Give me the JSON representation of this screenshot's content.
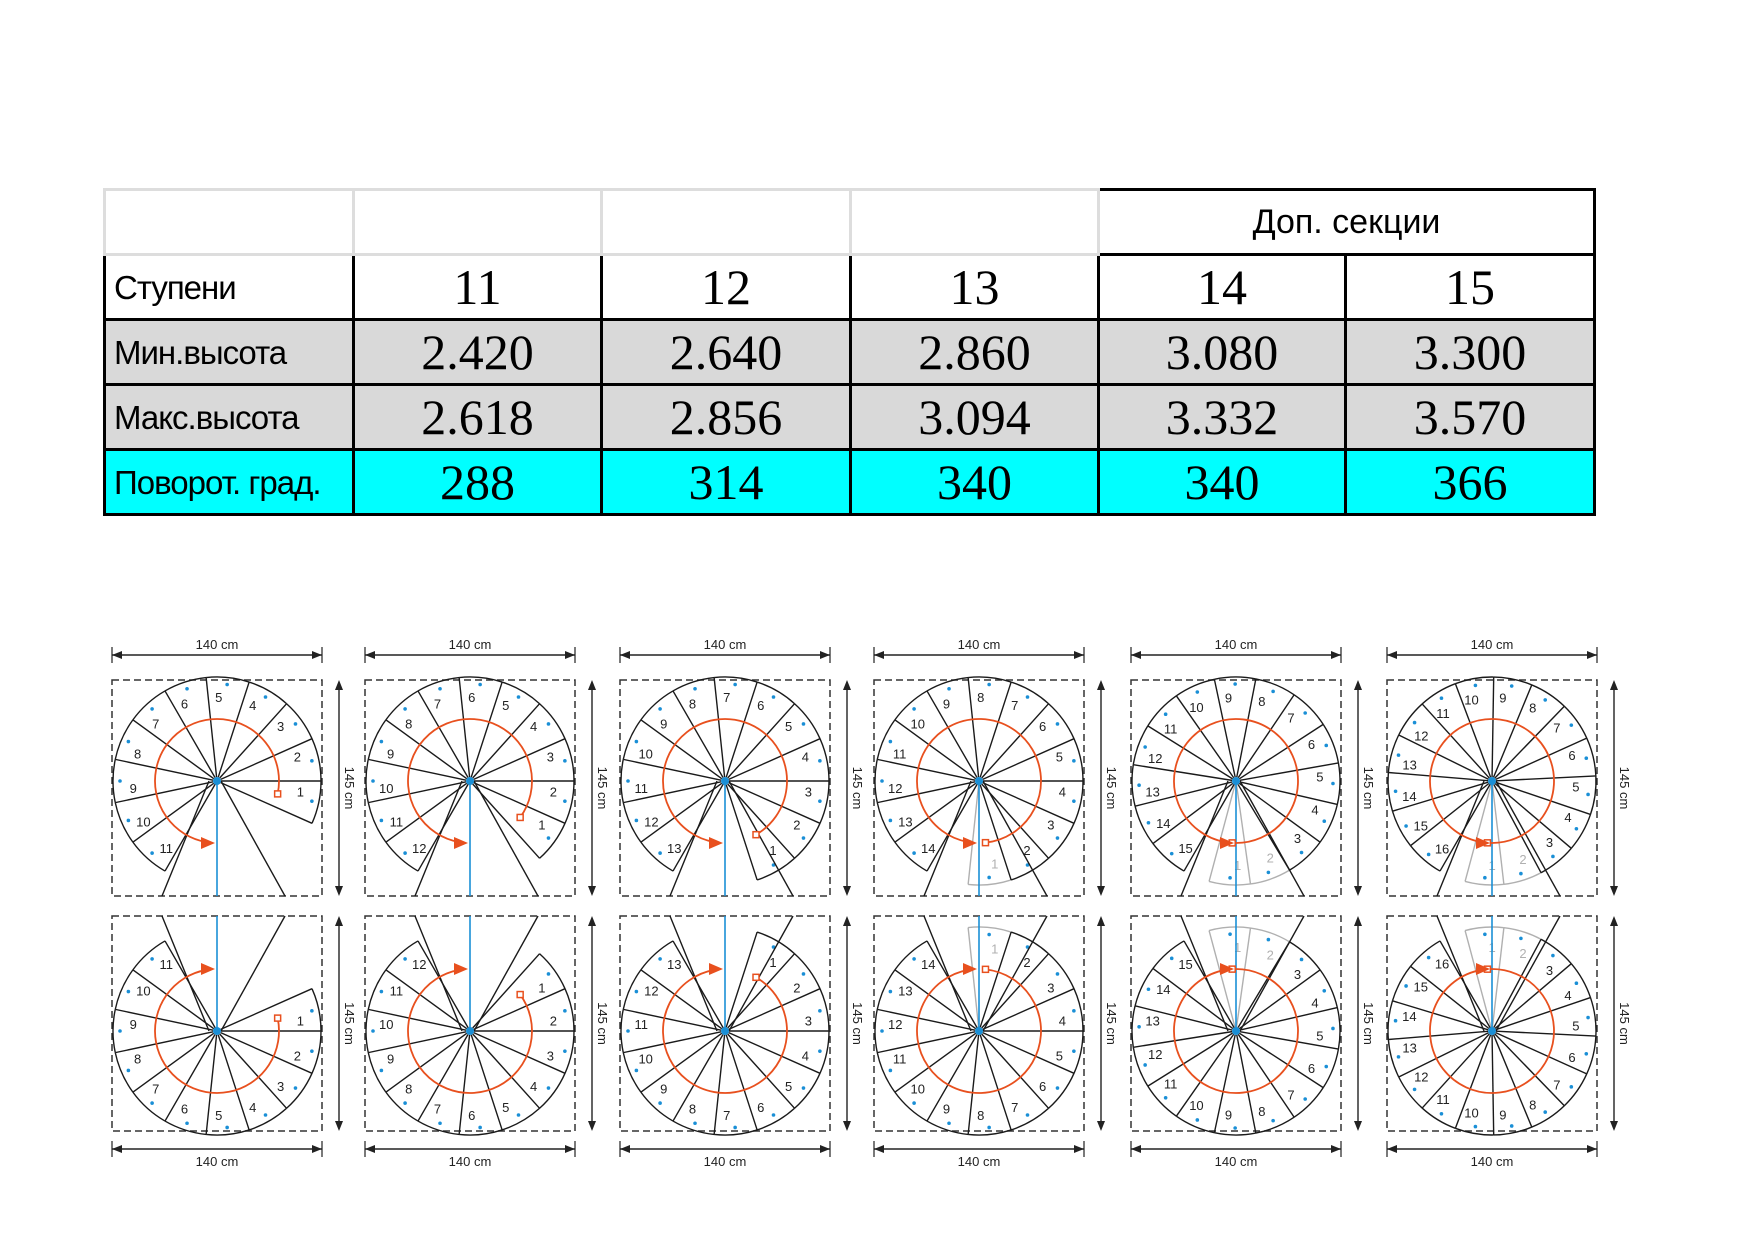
{
  "table": {
    "extra_sections_header": "Доп. секции",
    "rows": [
      {
        "label": "Ступени",
        "values": [
          "11",
          "12",
          "13",
          "14",
          "15"
        ],
        "style": "white"
      },
      {
        "label": "Мин.высота",
        "values": [
          "2.420",
          "2.640",
          "2.860",
          "3.080",
          "3.300"
        ],
        "style": "gray"
      },
      {
        "label": "Макс.высота",
        "values": [
          "2.618",
          "2.856",
          "3.094",
          "3.332",
          "3.570"
        ],
        "style": "gray"
      },
      {
        "label": "Поворот. град.",
        "values": [
          "288",
          "314",
          "340",
          "340",
          "366"
        ],
        "style": "cyan"
      }
    ]
  },
  "diagrams": {
    "width_label": "140 cm",
    "height_label": "145 cm",
    "step_counts": [
      11,
      12,
      13,
      14,
      15,
      16
    ],
    "colors": {
      "line": "#1a1a1a",
      "arrow": "#e8501e",
      "blue": "#1a8fd6",
      "gray": "#b0b0b0"
    }
  }
}
